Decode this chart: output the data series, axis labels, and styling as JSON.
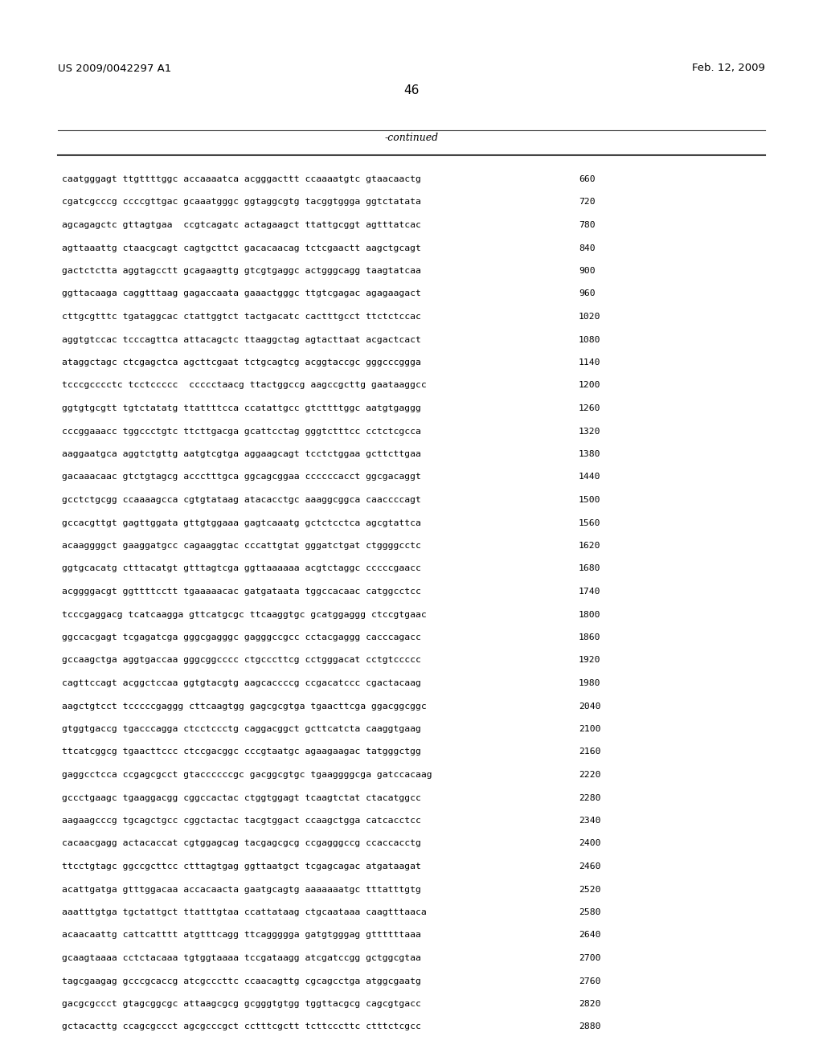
{
  "header_left": "US 2009/0042297 A1",
  "header_right": "Feb. 12, 2009",
  "page_number": "46",
  "continued_label": "-continued",
  "background_color": "#ffffff",
  "text_color": "#000000",
  "sequence_lines": [
    {
      "seq": "caatgggagt ttgttttggc accaaaatca acgggacttt ccaaaatgtc gtaacaactg",
      "num": "660"
    },
    {
      "seq": "cgatcgcccg ccccgttgac gcaaatgggc ggtaggcgtg tacggtggga ggtctatata",
      "num": "720"
    },
    {
      "seq": "agcagagctc gttagtgaa  ccgtcagatc actagaagct ttattgcggt agtttatcac",
      "num": "780"
    },
    {
      "seq": "agttaaattg ctaacgcagt cagtgcttct gacacaacag tctcgaactt aagctgcagt",
      "num": "840"
    },
    {
      "seq": "gactctctta aggtagcctt gcagaagttg gtcgtgaggc actgggcagg taagtatcaa",
      "num": "900"
    },
    {
      "seq": "ggttacaaga caggtttaag gagaccaata gaaactgggc ttgtcgagac agagaagact",
      "num": "960"
    },
    {
      "seq": "cttgcgtttc tgataggcac ctattggtct tactgacatc cactttgcct ttctctccac",
      "num": "1020"
    },
    {
      "seq": "aggtgtccac tcccagttca attacagctc ttaaggctag agtacttaat acgactcact",
      "num": "1080"
    },
    {
      "seq": "ataggctagc ctcgagctca agcttcgaat tctgcagtcg acggtaccgc gggcccggga",
      "num": "1140"
    },
    {
      "seq": "tcccgcccctc tcctccccc  ccccctaacg ttactggccg aagccgcttg gaataaggcc",
      "num": "1200"
    },
    {
      "seq": "ggtgtgcgtt tgtctatatg ttattttcca ccatattgcc gtcttttggc aatgtgaggg",
      "num": "1260"
    },
    {
      "seq": "cccggaaacc tggccctgtc ttcttgacga gcattcctag gggtctttcc cctctcgcca",
      "num": "1320"
    },
    {
      "seq": "aaggaatgca aggtctgttg aatgtcgtga aggaagcagt tcctctggaa gcttcttgaa",
      "num": "1380"
    },
    {
      "seq": "gacaaacaac gtctgtagcg accctttgca ggcagcggaa ccccccacct ggcgacaggt",
      "num": "1440"
    },
    {
      "seq": "gcctctgcgg ccaaaagcca cgtgtataag atacacctgc aaaggcggca caaccccagt",
      "num": "1500"
    },
    {
      "seq": "gccacgttgt gagttggata gttgtggaaa gagtcaaatg gctctcctca agcgtattca",
      "num": "1560"
    },
    {
      "seq": "acaaggggct gaaggatgcc cagaaggtac cccattgtat gggatctgat ctggggcctc",
      "num": "1620"
    },
    {
      "seq": "ggtgcacatg ctttacatgt gtttagtcga ggttaaaaaa acgtctaggc cccccgaacc",
      "num": "1680"
    },
    {
      "seq": "acggggacgt ggttttcctt tgaaaaacac gatgataata tggccacaac catggcctcc",
      "num": "1740"
    },
    {
      "seq": "tcccgaggacg tcatcaagga gttcatgcgc ttcaaggtgc gcatggaggg ctccgtgaac",
      "num": "1800"
    },
    {
      "seq": "ggccacgagt tcgagatcga gggcgagggc gagggccgcc cctacgaggg cacccagacc",
      "num": "1860"
    },
    {
      "seq": "gccaagctga aggtgaccaa gggcggcccc ctgcccttcg cctgggacat cctgtccccc",
      "num": "1920"
    },
    {
      "seq": "cagttccagt acggctccaa ggtgtacgtg aagcaccccg ccgacatccc cgactacaag",
      "num": "1980"
    },
    {
      "seq": "aagctgtcct tcccccgaggg cttcaagtgg gagcgcgtga tgaacttcga ggacggcggc",
      "num": "2040"
    },
    {
      "seq": "gtggtgaccg tgacccagga ctcctccctg caggacggct gcttcatcta caaggtgaag",
      "num": "2100"
    },
    {
      "seq": "ttcatcggcg tgaacttccc ctccgacggc cccgtaatgc agaagaagac tatgggctgg",
      "num": "2160"
    },
    {
      "seq": "gaggcctcca ccgagcgcct gtaccccccgc gacggcgtgc tgaaggggcga gatccacaag",
      "num": "2220"
    },
    {
      "seq": "gccctgaagc tgaaggacgg cggccactac ctggtggagt tcaagtctat ctacatggcc",
      "num": "2280"
    },
    {
      "seq": "aagaagcccg tgcagctgcc cggctactac tacgtggact ccaagctgga catcacctcc",
      "num": "2340"
    },
    {
      "seq": "cacaacgagg actacaccat cgtggagcag tacgagcgcg ccgagggccg ccaccacctg",
      "num": "2400"
    },
    {
      "seq": "ttcctgtagc ggccgcttcc ctttagtgag ggttaatgct tcgagcagac atgataagat",
      "num": "2460"
    },
    {
      "seq": "acattgatga gtttggacaa accacaacta gaatgcagtg aaaaaaatgc tttatttgtg",
      "num": "2520"
    },
    {
      "seq": "aaatttgtga tgctattgct ttatttgtaa ccattataag ctgcaataaa caagtttaaca",
      "num": "2580"
    },
    {
      "seq": "acaacaattg cattcatttt atgtttcagg ttcaggggga gatgtgggag gttttttaaa",
      "num": "2640"
    },
    {
      "seq": "gcaagtaaaa cctctacaaa tgtggtaaaa tccgataagg atcgatccgg gctggcgtaa",
      "num": "2700"
    },
    {
      "seq": "tagcgaagag gcccgcaccg atcgcccttc ccaacagttg cgcagcctga atggcgaatg",
      "num": "2760"
    },
    {
      "seq": "gacgcgccct gtagcggcgc attaagcgcg gcgggtgtgg tggttacgcg cagcgtgacc",
      "num": "2820"
    },
    {
      "seq": "gctacacttg ccagcgccct agcgcccgct cctttcgctt tcttcccttc ctttctcgcc",
      "num": "2880"
    }
  ]
}
